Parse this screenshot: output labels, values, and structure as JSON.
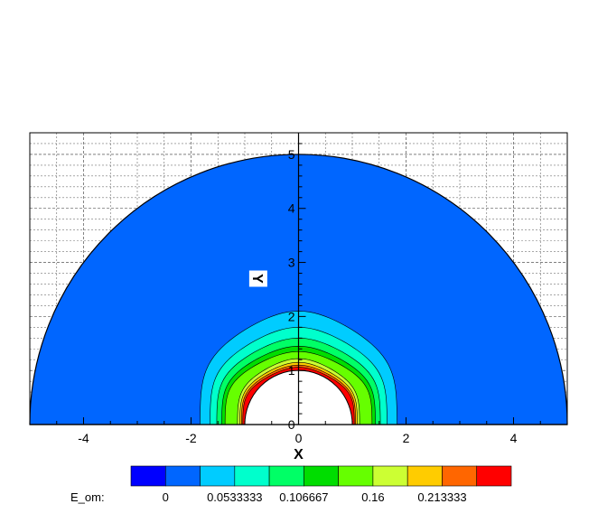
{
  "chart_data": {
    "type": "contour",
    "xlabel": "X",
    "ylabel": "Y",
    "xlim": [
      -5,
      5
    ],
    "ylim": [
      0,
      5.4
    ],
    "x_ticks": [
      "-4",
      "-2",
      "0",
      "2",
      "4"
    ],
    "y_ticks": [
      "0",
      "1",
      "2",
      "3",
      "4",
      "5"
    ],
    "grid": true,
    "domain": {
      "outer_radius": 5,
      "inner_radius": 1,
      "shape": "half-annulus"
    },
    "colorbar": {
      "name": "E_om:",
      "placement": "bottom",
      "labels": [
        "0",
        "0.0533333",
        "0.106667",
        "0.16",
        "0.213333"
      ],
      "levels": [
        0,
        0.0266667,
        0.0533333,
        0.08,
        0.106667,
        0.133333,
        0.16,
        0.186667,
        0.213333,
        0.24,
        0.266667
      ],
      "colors": [
        "#0000ff",
        "#0066ff",
        "#00ccff",
        "#00ffcc",
        "#00ff66",
        "#00dd00",
        "#66ff00",
        "#ccff33",
        "#ffcc00",
        "#ff6600",
        "#ff0000"
      ]
    },
    "contour_bands": [
      {
        "level_index": 1,
        "outer_extent_r": 5.0
      },
      {
        "level_index": 2,
        "outer_extent_r": 2.1
      },
      {
        "level_index": 3,
        "outer_extent_r": 1.8
      },
      {
        "level_index": 4,
        "outer_extent_r": 1.6
      },
      {
        "level_index": 5,
        "outer_extent_r": 1.45
      },
      {
        "level_index": 6,
        "outer_extent_r": 1.35
      },
      {
        "level_index": 7,
        "outer_extent_r": 1.22
      },
      {
        "level_index": 8,
        "outer_extent_r": 1.15
      },
      {
        "level_index": 9,
        "outer_extent_r": 1.1
      },
      {
        "level_index": 10,
        "outer_extent_r": 1.06
      }
    ]
  }
}
